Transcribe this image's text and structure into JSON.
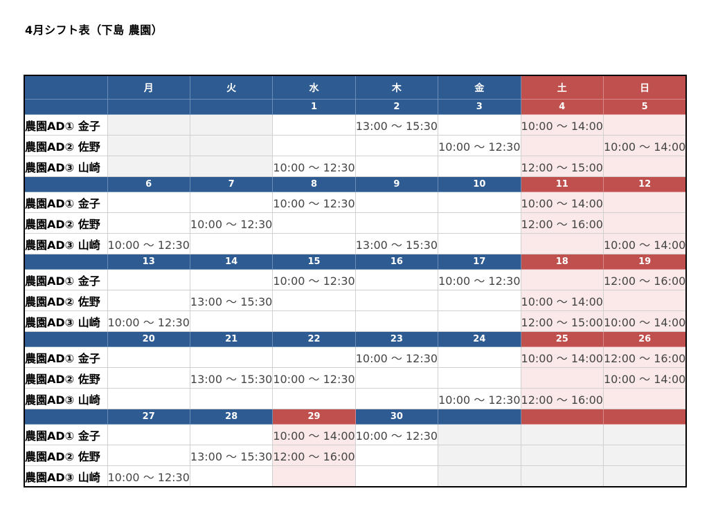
{
  "title": "4月シフト表（下島 農園）",
  "weekdays": [
    "月",
    "火",
    "水",
    "木",
    "金",
    "土",
    "日"
  ],
  "staff": [
    "農園AD① 金子",
    "農園AD② 佐野",
    "農園AD③ 山崎"
  ],
  "weeks": [
    {
      "dates": [
        "",
        "",
        "1",
        "2",
        "3",
        "4",
        "5"
      ],
      "shifts": [
        [
          "",
          "",
          "",
          "13:00 ～ 15:30",
          "",
          "10:00 ～ 14:00",
          ""
        ],
        [
          "",
          "",
          "",
          "",
          "10:00 ～ 12:30",
          "",
          "10:00 ～ 14:00"
        ],
        [
          "",
          "",
          "10:00 ～ 12:30",
          "",
          "",
          "12:00 ～ 15:00",
          ""
        ]
      ]
    },
    {
      "dates": [
        "6",
        "7",
        "8",
        "9",
        "10",
        "11",
        "12"
      ],
      "shifts": [
        [
          "",
          "",
          "10:00 ～ 12:30",
          "",
          "",
          "10:00 ～ 14:00",
          ""
        ],
        [
          "",
          "10:00 ～ 12:30",
          "",
          "",
          "",
          "12:00 ～ 16:00",
          ""
        ],
        [
          "10:00 ～ 12:30",
          "",
          "",
          "13:00 ～ 15:30",
          "",
          "",
          "10:00 ～ 14:00"
        ]
      ]
    },
    {
      "dates": [
        "13",
        "14",
        "15",
        "16",
        "17",
        "18",
        "19"
      ],
      "shifts": [
        [
          "",
          "",
          "10:00 ～ 12:30",
          "",
          "10:00 ～ 12:30",
          "",
          "12:00 ～ 16:00"
        ],
        [
          "",
          "13:00 ～ 15:30",
          "",
          "",
          "",
          "10:00 ～ 14:00",
          ""
        ],
        [
          "10:00 ～ 12:30",
          "",
          "",
          "",
          "",
          "12:00 ～ 15:00",
          "10:00 ～ 14:00"
        ]
      ]
    },
    {
      "dates": [
        "20",
        "21",
        "22",
        "23",
        "24",
        "25",
        "26"
      ],
      "shifts": [
        [
          "",
          "",
          "",
          "10:00 ～ 12:30",
          "",
          "10:00 ～ 14:00",
          "12:00 ～ 16:00"
        ],
        [
          "",
          "13:00 ～ 15:30",
          "10:00 ～ 12:30",
          "",
          "",
          "",
          "10:00 ～ 14:00"
        ],
        [
          "",
          "",
          "",
          "",
          "10:00 ～ 12:30",
          "12:00 ～ 16:00",
          ""
        ]
      ]
    },
    {
      "dates": [
        "27",
        "28",
        "29",
        "30",
        "",
        "",
        ""
      ],
      "shifts": [
        [
          "",
          "",
          "10:00 ～ 14:00",
          "10:00 ～ 12:30",
          "",
          "",
          ""
        ],
        [
          "",
          "13:00 ～ 15:30",
          "12:00 ～ 16:00",
          "",
          "",
          "",
          ""
        ],
        [
          "10:00 ～ 12:30",
          "",
          "",
          "",
          "",
          "",
          ""
        ]
      ]
    }
  ]
}
